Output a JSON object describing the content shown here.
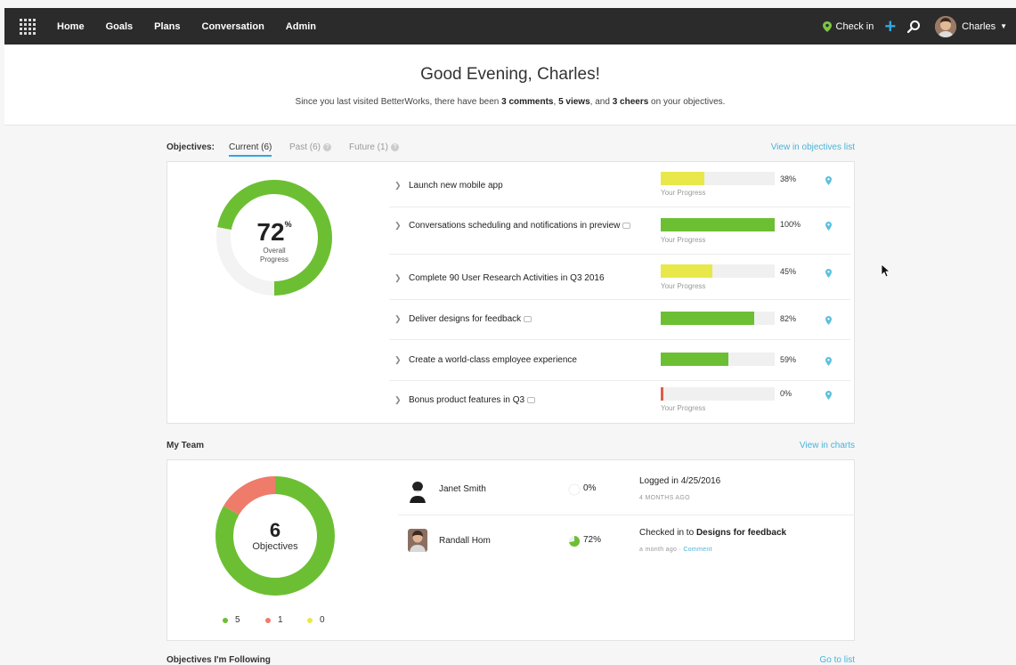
{
  "nav": {
    "items": [
      "Home",
      "Goals",
      "Plans",
      "Conversation",
      "Admin"
    ],
    "checkin_label": "Check in",
    "plus_label": "+",
    "user_name": "Charles"
  },
  "welcome": {
    "greeting": "Good Evening, Charles!",
    "summary_prefix": "Since you last visited BetterWorks, there have been ",
    "comments": "3 comments",
    "sep1": ", ",
    "views": "5 views",
    "sep2": ", and ",
    "cheers": "3 cheers",
    "summary_suffix": " on your objectives."
  },
  "objectives": {
    "label": "Objectives:",
    "tabs": [
      {
        "label": "Current (6)",
        "active": true
      },
      {
        "label": "Past (6)",
        "active": false
      },
      {
        "label": "Future (1)",
        "active": false
      }
    ],
    "help_glyph": "?",
    "view_link": "View in objectives list",
    "overall_value": "72",
    "overall_unit": "%",
    "overall_fraction": 0.72,
    "overall_label_1": "Overall",
    "overall_label_2": "Progress",
    "progress_sublabel": "Your Progress",
    "items": [
      {
        "title": "Launch new mobile app",
        "pct": "38%",
        "value": 38,
        "color": "#e8e84a",
        "has_comment": false,
        "show_sublabel": true
      },
      {
        "title": "Conversations scheduling and notifications in preview",
        "pct": "100%",
        "value": 100,
        "color": "#6cbf33",
        "has_comment": true,
        "show_sublabel": true
      },
      {
        "title": "Complete 90 User Research Activities in Q3 2016",
        "pct": "45%",
        "value": 45,
        "color": "#e8e84a",
        "has_comment": false,
        "show_sublabel": true
      },
      {
        "title": "Deliver designs for feedback",
        "pct": "82%",
        "value": 82,
        "color": "#6cbf33",
        "has_comment": true,
        "show_sublabel": false
      },
      {
        "title": "Create a world-class employee experience",
        "pct": "59%",
        "value": 59,
        "color": "#6cbf33",
        "has_comment": false,
        "show_sublabel": false
      },
      {
        "title": "Bonus product features in Q3",
        "pct": "0%",
        "value": 0,
        "color": "#e05b4c",
        "has_comment": true,
        "show_sublabel": true
      }
    ]
  },
  "team": {
    "label": "My Team",
    "view_link": "View in charts",
    "count": "6",
    "count_label": "Objectives",
    "legend": [
      {
        "count": "5",
        "value": 5,
        "color": "#6cbf33"
      },
      {
        "count": "1",
        "value": 1,
        "color": "#ef7b6b"
      },
      {
        "count": "0",
        "value": 0,
        "color": "#e8e84a"
      }
    ],
    "members": [
      {
        "name": "Janet Smith",
        "pct": "0%",
        "value": 0,
        "activity": "Logged in 4/25/2016",
        "activity_bold": "",
        "sub": "4 MONTHS AGO",
        "sub_link": ""
      },
      {
        "name": "Randall Hom",
        "pct": "72%",
        "value": 72,
        "activity": "Checked in to ",
        "activity_bold": "Designs for feedback",
        "sub": "a month ago · ",
        "sub_link": "Comment"
      }
    ]
  },
  "following": {
    "label": "Objectives I'm Following",
    "link": "Go to list"
  }
}
